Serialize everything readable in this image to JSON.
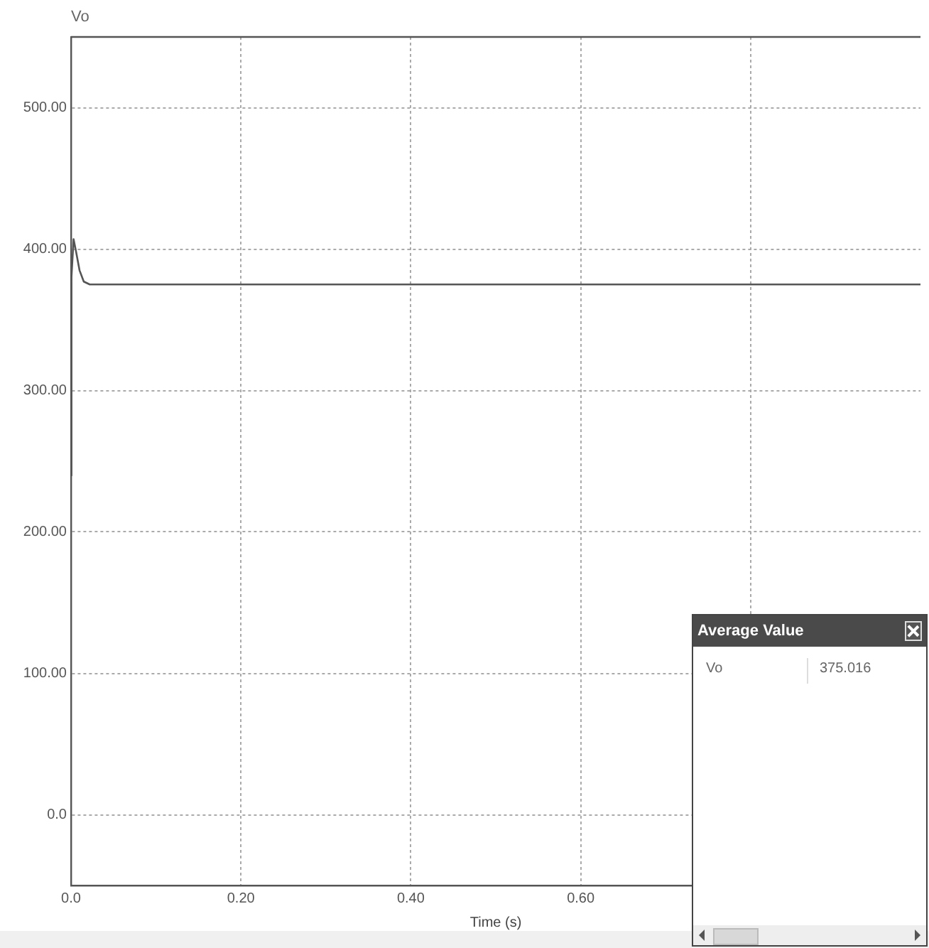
{
  "chart_data": {
    "type": "line",
    "xlabel": "Time (s)",
    "ylabel": "Vo",
    "x": [
      0,
      0.0005,
      0.003,
      0.006,
      0.01,
      0.015,
      0.022,
      1.0
    ],
    "series": [
      {
        "color": "#555555",
        "values": [
          240,
          380,
          407,
          398,
          385,
          377,
          375,
          375
        ]
      }
    ],
    "xlim": [
      0,
      1.0
    ],
    "xticks": [
      {
        "value": 0,
        "label": "0.0"
      },
      {
        "value": 0.2,
        "label": "0.20"
      },
      {
        "value": 0.4,
        "label": "0.40"
      },
      {
        "value": 0.6,
        "label": "0.60"
      },
      {
        "value": 0.8,
        "label": null
      }
    ],
    "ylim": [
      -50,
      550
    ],
    "yticks": [
      {
        "value": 0,
        "label": "0.0"
      },
      {
        "value": 100,
        "label": "100.00"
      },
      {
        "value": 200,
        "label": "200.00"
      },
      {
        "value": 300,
        "label": "300.00"
      },
      {
        "value": 400,
        "label": "400.00"
      },
      {
        "value": 500,
        "label": "500.00"
      }
    ],
    "grid": true,
    "legend": false,
    "marker": "none",
    "line_style": "solid",
    "annotations": [
      "Average Value",
      "Vo",
      "375.016"
    ]
  }
}
